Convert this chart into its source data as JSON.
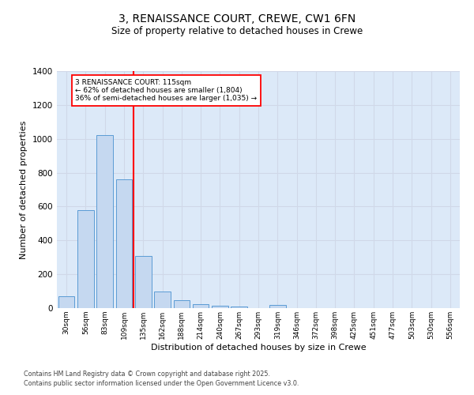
{
  "title_line1": "3, RENAISSANCE COURT, CREWE, CW1 6FN",
  "title_line2": "Size of property relative to detached houses in Crewe",
  "xlabel": "Distribution of detached houses by size in Crewe",
  "ylabel": "Number of detached properties",
  "footer_line1": "Contains HM Land Registry data © Crown copyright and database right 2025.",
  "footer_line2": "Contains public sector information licensed under the Open Government Licence v3.0.",
  "annotation_line1": "3 RENAISSANCE COURT: 115sqm",
  "annotation_line2": "← 62% of detached houses are smaller (1,804)",
  "annotation_line3": "36% of semi-detached houses are larger (1,035) →",
  "bar_color": "#c5d8f0",
  "bar_edge_color": "#5b9bd5",
  "red_line_color": "#ff0000",
  "grid_color": "#d0d8e8",
  "background_color": "#dce9f8",
  "categories": [
    "30sqm",
    "56sqm",
    "83sqm",
    "109sqm",
    "135sqm",
    "162sqm",
    "188sqm",
    "214sqm",
    "240sqm",
    "267sqm",
    "293sqm",
    "319sqm",
    "346sqm",
    "372sqm",
    "398sqm",
    "425sqm",
    "451sqm",
    "477sqm",
    "503sqm",
    "530sqm",
    "556sqm"
  ],
  "values": [
    70,
    580,
    1020,
    760,
    310,
    100,
    45,
    25,
    15,
    10,
    0,
    20,
    0,
    0,
    0,
    0,
    0,
    0,
    0,
    0,
    0
  ],
  "ylim": [
    0,
    1400
  ],
  "yticks": [
    0,
    200,
    400,
    600,
    800,
    1000,
    1200,
    1400
  ],
  "red_line_x": 3.5
}
